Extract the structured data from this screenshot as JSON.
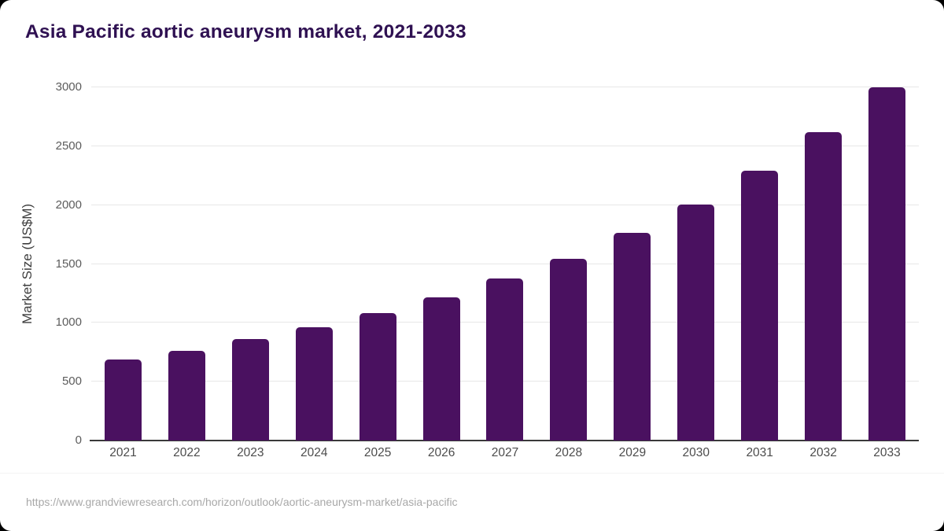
{
  "chart_data": {
    "type": "bar",
    "title": "Asia Pacific aortic aneurysm market, 2021-2033",
    "xlabel": "",
    "ylabel": "Market Size (US$M)",
    "categories": [
      "2021",
      "2022",
      "2023",
      "2024",
      "2025",
      "2026",
      "2027",
      "2028",
      "2029",
      "2030",
      "2031",
      "2032",
      "2033"
    ],
    "values": [
      685,
      765,
      860,
      960,
      1080,
      1215,
      1375,
      1545,
      1765,
      2005,
      2290,
      2620,
      3000
    ],
    "ylim": [
      0,
      3000
    ],
    "yticks": [
      0,
      500,
      1000,
      1500,
      2000,
      2500,
      3000
    ],
    "grid": true,
    "legend": "none",
    "bar_color": "#4a1160",
    "title_color": "#2f1152"
  },
  "footer": {
    "source_url": "https://www.grandviewresearch.com/horizon/outlook/aortic-aneurysm-market/asia-pacific"
  }
}
